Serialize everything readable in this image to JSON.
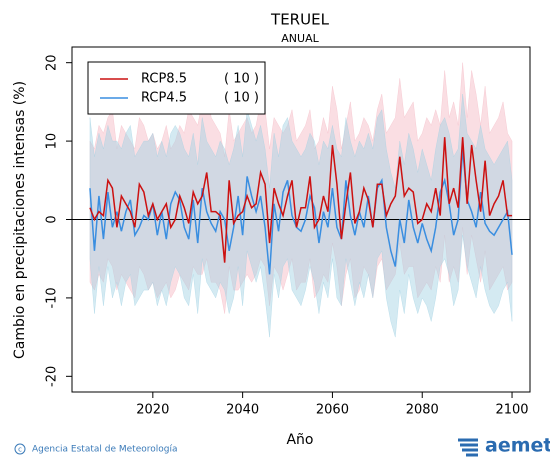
{
  "chart_data": {
    "type": "line",
    "title": "TERUEL",
    "subtitle": "ANUAL",
    "x_label": "Año",
    "y_label": "Cambio en precipitaciones intensas (%)",
    "xlim": [
      2002,
      2104
    ],
    "ylim": [
      -22,
      22
    ],
    "xticks": [
      2020,
      2040,
      2060,
      2080,
      2100
    ],
    "yticks": [
      -20,
      -10,
      0,
      10,
      20
    ],
    "hline": 0,
    "x": [
      2006,
      2007,
      2008,
      2009,
      2010,
      2011,
      2012,
      2013,
      2014,
      2015,
      2016,
      2017,
      2018,
      2019,
      2020,
      2021,
      2022,
      2023,
      2024,
      2025,
      2026,
      2027,
      2028,
      2029,
      2030,
      2031,
      2032,
      2033,
      2034,
      2035,
      2036,
      2037,
      2038,
      2039,
      2040,
      2041,
      2042,
      2043,
      2044,
      2045,
      2046,
      2047,
      2048,
      2049,
      2050,
      2051,
      2052,
      2053,
      2054,
      2055,
      2056,
      2057,
      2058,
      2059,
      2060,
      2061,
      2062,
      2063,
      2064,
      2065,
      2066,
      2067,
      2068,
      2069,
      2070,
      2071,
      2072,
      2073,
      2074,
      2075,
      2076,
      2077,
      2078,
      2079,
      2080,
      2081,
      2082,
      2083,
      2084,
      2085,
      2086,
      2087,
      2088,
      2089,
      2090,
      2091,
      2092,
      2093,
      2094,
      2095,
      2096,
      2097,
      2098,
      2099,
      2100
    ],
    "series": [
      {
        "name": "RCP8.5",
        "count_label": "( 10 )",
        "color": "#cc1111",
        "band_color": "#f4b6c2",
        "values": [
          1.5,
          0,
          1,
          0.5,
          5,
          4,
          -1,
          3,
          2,
          1,
          -1,
          4.5,
          3.5,
          0.5,
          2,
          0,
          1,
          2,
          -1,
          0,
          3,
          1.5,
          -0.5,
          3.5,
          2,
          3,
          6,
          1,
          1,
          0.5,
          -5.5,
          5,
          -0.5,
          0.5,
          1,
          3,
          1.5,
          2,
          6,
          4.5,
          -3,
          4,
          2,
          0.5,
          3,
          5,
          -1,
          1.5,
          1.5,
          5.5,
          -1,
          0,
          3,
          1,
          9.5,
          4.5,
          -2.5,
          2,
          6,
          -0.5,
          1,
          4,
          2.5,
          -1,
          4.5,
          4.5,
          0.5,
          2,
          3,
          8,
          3,
          4,
          3.5,
          -0.5,
          0,
          2,
          1,
          4,
          0.5,
          10.5,
          2,
          4,
          1.5,
          10.5,
          2,
          9.5,
          5,
          1,
          7.5,
          0.5,
          2,
          3,
          5,
          0.5,
          0.5
        ],
        "band_upper": [
          10,
          9,
          12,
          11,
          13,
          14,
          9,
          12,
          11,
          10,
          9,
          13,
          12,
          10,
          11,
          9,
          10,
          12,
          9,
          10,
          12,
          11,
          14,
          13,
          12,
          15,
          17,
          13,
          12,
          11,
          8,
          14,
          10,
          11,
          12,
          13,
          11,
          12,
          15,
          14,
          9,
          13,
          12,
          11,
          12,
          14,
          10,
          11,
          12,
          14,
          9,
          10,
          13,
          11,
          17,
          14,
          9,
          12,
          15,
          10,
          11,
          13,
          12,
          10,
          14,
          16,
          11,
          12,
          13,
          18,
          13,
          14,
          15,
          10,
          11,
          13,
          12,
          14,
          12,
          19,
          13,
          15,
          12,
          20,
          13,
          19,
          16,
          12,
          17,
          11,
          12,
          13,
          15,
          11,
          10
        ],
        "band_lower": [
          -8,
          -9,
          -7,
          -8,
          -5,
          -6,
          -9,
          -7,
          -8,
          -9,
          -10,
          -6,
          -7,
          -9,
          -8,
          -10,
          -9,
          -8,
          -10,
          -9,
          -7,
          -8,
          -9,
          -6,
          -7,
          -7,
          -5,
          -8,
          -8,
          -9,
          -12,
          -6,
          -9,
          -9,
          -8,
          -7,
          -8,
          -7,
          -5,
          -6,
          -11,
          -6,
          -7,
          -9,
          -7,
          -5,
          -9,
          -8,
          -8,
          -5,
          -10,
          -9,
          -7,
          -8,
          -3,
          -6,
          -11,
          -7,
          -5,
          -10,
          -9,
          -6,
          -7,
          -10,
          -6,
          -5,
          -9,
          -8,
          -7,
          -3,
          -7,
          -6,
          -6,
          -10,
          -9,
          -8,
          -9,
          -6,
          -8,
          -2,
          -8,
          -6,
          -8,
          -1,
          -7,
          -2,
          -5,
          -8,
          -4,
          -9,
          -8,
          -7,
          -6,
          -9,
          -8
        ]
      },
      {
        "name": "RCP4.5",
        "count_label": "( 10 )",
        "color": "#3a8ee0",
        "band_color": "#9fd0e3",
        "values": [
          4,
          -4,
          3,
          -2.5,
          3.5,
          -1,
          1,
          -1.5,
          1,
          2.5,
          -2,
          -1,
          0.5,
          0,
          2,
          -2,
          1,
          -2.5,
          2,
          3.5,
          2.5,
          -1,
          -2.5,
          2.5,
          -3,
          4,
          1,
          -0.5,
          -1.5,
          1,
          0,
          -4,
          -1,
          3,
          -2,
          5.5,
          3,
          1,
          3,
          -1,
          -7,
          2,
          -1.5,
          3.5,
          5,
          0.5,
          -1,
          -1.5,
          0,
          3,
          1.5,
          -3,
          1,
          -1,
          4,
          -1,
          -2.5,
          5,
          0.5,
          -2,
          1,
          -1,
          3,
          -1,
          4,
          5,
          -1,
          -4,
          -6,
          0,
          -3,
          2.5,
          -1,
          -3,
          -0.5,
          -2.5,
          -4,
          -1,
          3.5,
          5,
          2,
          -2,
          0,
          9,
          2.5,
          1,
          -1,
          3.5,
          -0.5,
          -1.5,
          -2,
          -1,
          0,
          1,
          -4.5
        ],
        "band_upper": [
          13,
          8,
          11,
          9,
          12,
          10,
          10,
          9,
          11,
          12,
          8,
          9,
          10,
          10,
          11,
          8,
          10,
          8,
          11,
          12,
          11,
          9,
          8,
          11,
          7,
          13,
          10,
          9,
          8,
          10,
          9,
          7,
          9,
          12,
          8,
          14,
          12,
          10,
          12,
          9,
          4,
          11,
          8,
          12,
          13,
          10,
          9,
          8,
          9,
          11,
          10,
          7,
          10,
          9,
          12,
          9,
          8,
          13,
          10,
          8,
          10,
          9,
          11,
          9,
          13,
          14,
          9,
          6,
          4,
          10,
          7,
          11,
          9,
          6,
          9,
          7,
          5,
          9,
          12,
          13,
          11,
          8,
          9,
          16,
          11,
          10,
          9,
          12,
          9,
          8,
          7,
          8,
          9,
          10,
          5
        ],
        "band_lower": [
          -5,
          -12,
          -6,
          -11,
          -6,
          -10,
          -8,
          -11,
          -8,
          -7,
          -11,
          -10,
          -9,
          -9,
          -8,
          -11,
          -9,
          -11,
          -8,
          -6,
          -7,
          -10,
          -11,
          -7,
          -12,
          -5,
          -8,
          -9,
          -10,
          -8,
          -9,
          -12,
          -10,
          -6,
          -11,
          -4,
          -6,
          -8,
          -6,
          -10,
          -15,
          -7,
          -10,
          -6,
          -5,
          -9,
          -10,
          -11,
          -9,
          -6,
          -8,
          -12,
          -8,
          -10,
          -5,
          -10,
          -11,
          -5,
          -8,
          -11,
          -8,
          -10,
          -7,
          -10,
          -5,
          -4,
          -10,
          -13,
          -15,
          -9,
          -12,
          -7,
          -10,
          -12,
          -10,
          -11,
          -13,
          -10,
          -6,
          -5,
          -7,
          -11,
          -9,
          -2,
          -6,
          -8,
          -10,
          -6,
          -9,
          -11,
          -12,
          -11,
          -9,
          -8,
          -13
        ]
      }
    ]
  },
  "footer": "Agencia Estatal de Meteorología",
  "logo": "aemet"
}
